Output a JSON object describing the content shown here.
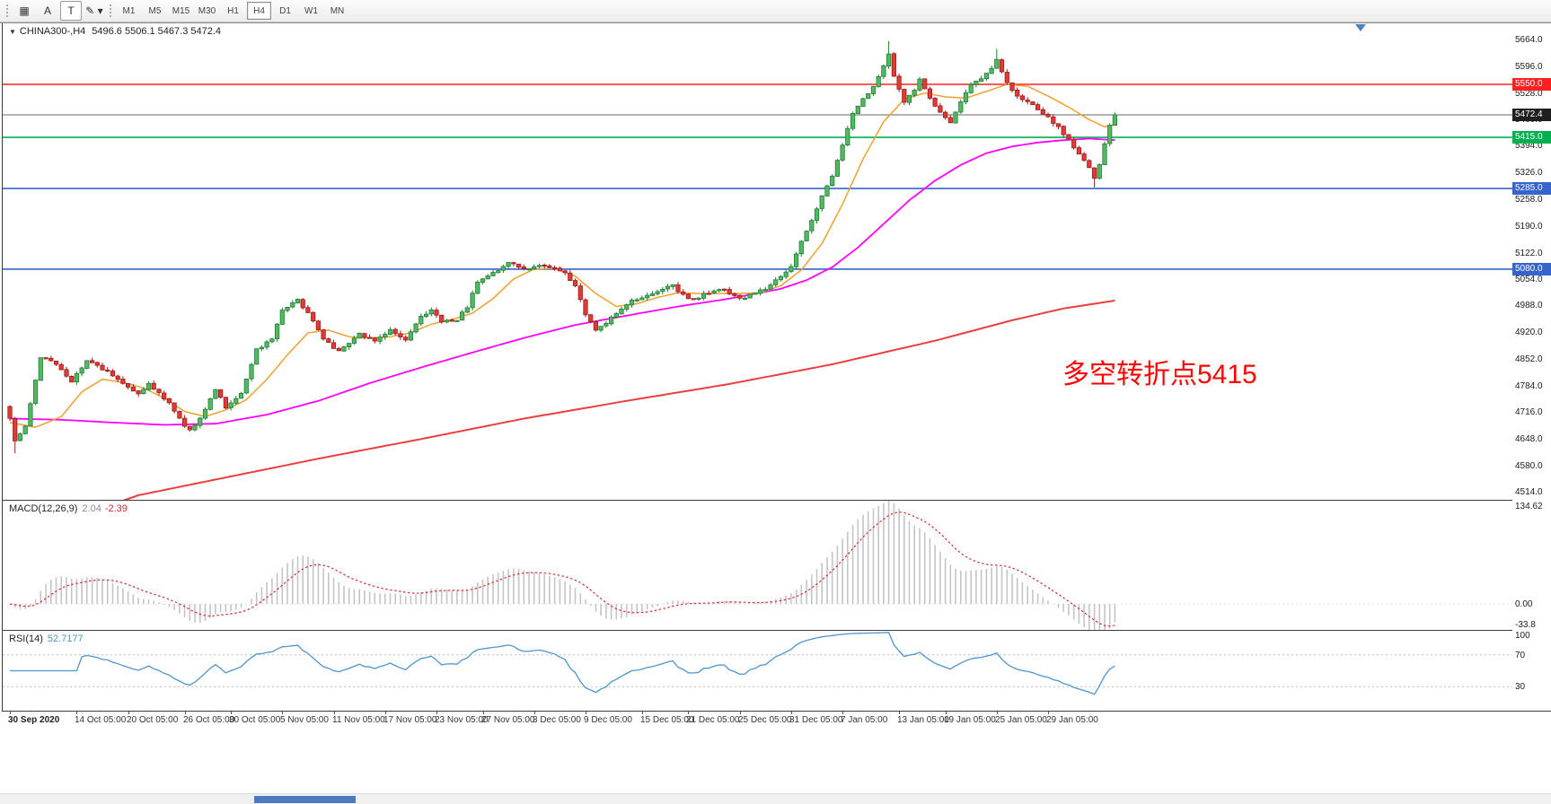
{
  "toolbar": {
    "tools": [
      {
        "name": "chart-grid",
        "glyph": "▦"
      },
      {
        "name": "annotate-a",
        "glyph": "A"
      },
      {
        "name": "text-tool-t",
        "glyph": "T",
        "boxed": true
      },
      {
        "name": "draw-style",
        "glyph": "✎",
        "has_dropdown": true
      }
    ],
    "timeframes": [
      {
        "label": "M1"
      },
      {
        "label": "M5"
      },
      {
        "label": "M15"
      },
      {
        "label": "M30"
      },
      {
        "label": "H1"
      },
      {
        "label": "H4",
        "selected": true
      },
      {
        "label": "D1"
      },
      {
        "label": "W1"
      },
      {
        "label": "MN"
      }
    ]
  },
  "chart": {
    "title": {
      "marker": "▼",
      "symbol": "CHINA300-,H4",
      "ohlc": "5496.6 5506.1 5467.3 5472.4"
    },
    "annotation": {
      "text": "多空转折点5415",
      "color": "#ff0000"
    },
    "levels": [
      {
        "label": "5550.0",
        "v": 5550.0,
        "color": "#ff2020",
        "tag_bg": "#ff2020",
        "type": "resistance"
      },
      {
        "label": "5472.4",
        "v": 5472.4,
        "color": "#666666",
        "tag_bg": "#1f1f1f",
        "current": true,
        "type": "current-price"
      },
      {
        "label": "5415.0",
        "v": 5415.0,
        "color": "#00b050",
        "tag_bg": "#00b050",
        "type": "pivot"
      },
      {
        "label": "5285.0",
        "v": 5285.0,
        "color": "#3464cc",
        "tag_bg": "#3464cc",
        "type": "support"
      },
      {
        "label": "5080.0",
        "v": 5080.0,
        "color": "#3464cc",
        "tag_bg": "#3464cc",
        "type": "support"
      }
    ],
    "price_axis": [
      {
        "label": "5664.0",
        "v": 5664
      },
      {
        "label": "5596.0",
        "v": 5596
      },
      {
        "label": "5528.0",
        "v": 5528
      },
      {
        "label": "5460.0",
        "v": 5460
      },
      {
        "label": "5394.0",
        "v": 5394
      },
      {
        "label": "5326.0",
        "v": 5326
      },
      {
        "label": "5258.0",
        "v": 5258
      },
      {
        "label": "5190.0",
        "v": 5190
      },
      {
        "label": "5122.0",
        "v": 5122
      },
      {
        "label": "5054.0",
        "v": 5054
      },
      {
        "label": "4988.0",
        "v": 4988
      },
      {
        "label": "4920.0",
        "v": 4920
      },
      {
        "label": "4852.0",
        "v": 4852
      },
      {
        "label": "4784.0",
        "v": 4784
      },
      {
        "label": "4716.0",
        "v": 4716
      },
      {
        "label": "4648.0",
        "v": 4648
      },
      {
        "label": "4580.0",
        "v": 4580
      },
      {
        "label": "4514.0",
        "v": 4514
      }
    ],
    "time_axis": [
      {
        "label": "30 Sep 2020",
        "i": 0
      },
      {
        "label": "14 Oct 05:00",
        "i": 13
      },
      {
        "label": "20 Oct 05:00",
        "i": 23
      },
      {
        "label": "26 Oct 05:00",
        "i": 34
      },
      {
        "label": "30 Oct 05:00",
        "i": 43
      },
      {
        "label": "5 Nov 05:00",
        "i": 53
      },
      {
        "label": "11 Nov 05:00",
        "i": 63
      },
      {
        "label": "17 Nov 05:00",
        "i": 73
      },
      {
        "label": "23 Nov 05:00",
        "i": 83
      },
      {
        "label": "27 Nov 05:00",
        "i": 92
      },
      {
        "label": "3 Dec 05:00",
        "i": 102
      },
      {
        "label": "9 Dec 05:00",
        "i": 112
      },
      {
        "label": "15 Dec 05:00",
        "i": 123
      },
      {
        "label": "21 Dec 05:00",
        "i": 132
      },
      {
        "label": "25 Dec 05:00",
        "i": 142
      },
      {
        "label": "31 Dec 05:00",
        "i": 152
      },
      {
        "label": "7 Jan 05:00",
        "i": 162
      },
      {
        "label": "13 Jan 05:00",
        "i": 173
      },
      {
        "label": "19 Jan 05:00",
        "i": 182
      },
      {
        "label": "25 Jan 05:00",
        "i": 192
      },
      {
        "label": "29 Jan 05:00",
        "i": 202
      }
    ]
  },
  "indicators": {
    "macd": {
      "name": "MACD(12,26,9)",
      "value_main": "2.04",
      "value_signal": "-2.39",
      "axis": [
        {
          "label": "134.62",
          "v": 134.62
        },
        {
          "label": "0.00",
          "v": 0
        },
        {
          "label": "-33.8",
          "v": -33.8
        }
      ]
    },
    "rsi": {
      "name": "RSI(14)",
      "value": "52.7177",
      "axis": [
        {
          "label": "100",
          "v": 100
        },
        {
          "label": "70",
          "v": 70
        },
        {
          "label": "30",
          "v": 30
        }
      ],
      "guides": [
        70,
        30
      ]
    }
  },
  "chart_data": {
    "type": "candlestick",
    "symbol": "CHINA300-",
    "timeframe": "H4",
    "title": "CHINA300- H4 with MA fast/mid/slow, horizontal levels 5550/5415/5285/5080, MACD(12,26,9), RSI(14)",
    "n_candles": 216,
    "price_range_visible": [
      4493,
      5705
    ],
    "ohlc_last": {
      "open": 5496.6,
      "high": 5506.1,
      "low": 5467.3,
      "close": 5472.4
    },
    "close_anchors": [
      [
        0,
        4700
      ],
      [
        1,
        4642
      ],
      [
        3,
        4678
      ],
      [
        6,
        4858
      ],
      [
        9,
        4838
      ],
      [
        12,
        4795
      ],
      [
        15,
        4850
      ],
      [
        19,
        4818
      ],
      [
        22,
        4788
      ],
      [
        25,
        4763
      ],
      [
        27,
        4790
      ],
      [
        31,
        4738
      ],
      [
        33,
        4700
      ],
      [
        35,
        4668
      ],
      [
        37,
        4700
      ],
      [
        40,
        4775
      ],
      [
        42,
        4730
      ],
      [
        45,
        4762
      ],
      [
        48,
        4875
      ],
      [
        51,
        4900
      ],
      [
        53,
        4975
      ],
      [
        56,
        5002
      ],
      [
        58,
        4968
      ],
      [
        61,
        4905
      ],
      [
        64,
        4870
      ],
      [
        66,
        4890
      ],
      [
        68,
        4915
      ],
      [
        71,
        4898
      ],
      [
        74,
        4925
      ],
      [
        77,
        4898
      ],
      [
        80,
        4958
      ],
      [
        82,
        4978
      ],
      [
        84,
        4945
      ],
      [
        87,
        4952
      ],
      [
        89,
        4985
      ],
      [
        91,
        5048
      ],
      [
        94,
        5070
      ],
      [
        97,
        5098
      ],
      [
        99,
        5085
      ],
      [
        101,
        5078
      ],
      [
        103,
        5092
      ],
      [
        106,
        5085
      ],
      [
        108,
        5070
      ],
      [
        110,
        5038
      ],
      [
        112,
        4965
      ],
      [
        114,
        4928
      ],
      [
        116,
        4945
      ],
      [
        119,
        4978
      ],
      [
        121,
        4998
      ],
      [
        124,
        5012
      ],
      [
        127,
        5028
      ],
      [
        129,
        5038
      ],
      [
        132,
        5002
      ],
      [
        134,
        5008
      ],
      [
        136,
        5022
      ],
      [
        139,
        5028
      ],
      [
        141,
        5012
      ],
      [
        143,
        5005
      ],
      [
        145,
        5022
      ],
      [
        147,
        5032
      ],
      [
        150,
        5062
      ],
      [
        152,
        5088
      ],
      [
        154,
        5148
      ],
      [
        156,
        5205
      ],
      [
        158,
        5268
      ],
      [
        160,
        5318
      ],
      [
        162,
        5395
      ],
      [
        164,
        5475
      ],
      [
        166,
        5512
      ],
      [
        168,
        5545
      ],
      [
        170,
        5598
      ],
      [
        171,
        5630
      ],
      [
        172,
        5568
      ],
      [
        174,
        5505
      ],
      [
        176,
        5538
      ],
      [
        177,
        5560
      ],
      [
        179,
        5512
      ],
      [
        181,
        5478
      ],
      [
        183,
        5452
      ],
      [
        185,
        5508
      ],
      [
        187,
        5550
      ],
      [
        189,
        5565
      ],
      [
        191,
        5588
      ],
      [
        192,
        5610
      ],
      [
        194,
        5555
      ],
      [
        196,
        5518
      ],
      [
        198,
        5508
      ],
      [
        200,
        5482
      ],
      [
        202,
        5465
      ],
      [
        204,
        5442
      ],
      [
        206,
        5408
      ],
      [
        208,
        5372
      ],
      [
        210,
        5336
      ],
      [
        211,
        5308
      ],
      [
        212,
        5345
      ],
      [
        213,
        5400
      ],
      [
        214,
        5445
      ],
      [
        215,
        5470
      ]
    ],
    "wick_overrides": [
      [
        1,
        "low",
        4612
      ],
      [
        171,
        "high",
        5660
      ],
      [
        192,
        "high",
        5640
      ],
      [
        211,
        "low",
        5288
      ]
    ],
    "ma_fast_anchors": [
      [
        0,
        4690
      ],
      [
        5,
        4678
      ],
      [
        10,
        4705
      ],
      [
        14,
        4768
      ],
      [
        18,
        4800
      ],
      [
        22,
        4792
      ],
      [
        26,
        4778
      ],
      [
        30,
        4752
      ],
      [
        34,
        4718
      ],
      [
        38,
        4705
      ],
      [
        42,
        4722
      ],
      [
        46,
        4748
      ],
      [
        50,
        4800
      ],
      [
        54,
        4862
      ],
      [
        58,
        4918
      ],
      [
        62,
        4925
      ],
      [
        66,
        4908
      ],
      [
        70,
        4905
      ],
      [
        74,
        4908
      ],
      [
        78,
        4918
      ],
      [
        82,
        4940
      ],
      [
        86,
        4952
      ],
      [
        90,
        4968
      ],
      [
        94,
        5005
      ],
      [
        98,
        5055
      ],
      [
        102,
        5080
      ],
      [
        106,
        5082
      ],
      [
        110,
        5062
      ],
      [
        114,
        5018
      ],
      [
        118,
        4985
      ],
      [
        122,
        4992
      ],
      [
        126,
        5008
      ],
      [
        130,
        5020
      ],
      [
        134,
        5018
      ],
      [
        138,
        5018
      ],
      [
        142,
        5018
      ],
      [
        146,
        5020
      ],
      [
        150,
        5038
      ],
      [
        154,
        5078
      ],
      [
        158,
        5145
      ],
      [
        162,
        5245
      ],
      [
        166,
        5360
      ],
      [
        170,
        5455
      ],
      [
        174,
        5512
      ],
      [
        178,
        5528
      ],
      [
        182,
        5518
      ],
      [
        186,
        5515
      ],
      [
        190,
        5532
      ],
      [
        194,
        5550
      ],
      [
        198,
        5545
      ],
      [
        202,
        5520
      ],
      [
        206,
        5492
      ],
      [
        210,
        5460
      ],
      [
        213,
        5442
      ],
      [
        215,
        5448
      ]
    ],
    "ma_mid_anchors": [
      [
        0,
        4700
      ],
      [
        10,
        4697
      ],
      [
        20,
        4690
      ],
      [
        30,
        4684
      ],
      [
        40,
        4687
      ],
      [
        50,
        4710
      ],
      [
        60,
        4745
      ],
      [
        70,
        4790
      ],
      [
        80,
        4830
      ],
      [
        90,
        4868
      ],
      [
        100,
        4905
      ],
      [
        110,
        4938
      ],
      [
        120,
        4962
      ],
      [
        130,
        4985
      ],
      [
        140,
        5005
      ],
      [
        150,
        5030
      ],
      [
        155,
        5052
      ],
      [
        160,
        5085
      ],
      [
        165,
        5135
      ],
      [
        170,
        5195
      ],
      [
        175,
        5255
      ],
      [
        180,
        5305
      ],
      [
        185,
        5345
      ],
      [
        190,
        5375
      ],
      [
        195,
        5392
      ],
      [
        200,
        5402
      ],
      [
        205,
        5408
      ],
      [
        210,
        5412
      ],
      [
        215,
        5408
      ]
    ],
    "ma_slow_anchors": [
      [
        0,
        4395
      ],
      [
        10,
        4448
      ],
      [
        20,
        4482
      ],
      [
        25,
        4505
      ],
      [
        40,
        4545
      ],
      [
        60,
        4598
      ],
      [
        80,
        4648
      ],
      [
        100,
        4700
      ],
      [
        120,
        4745
      ],
      [
        140,
        4788
      ],
      [
        160,
        4838
      ],
      [
        180,
        4898
      ],
      [
        195,
        4950
      ],
      [
        205,
        4980
      ],
      [
        215,
        5000
      ]
    ],
    "macd_scale_max": 134.62,
    "colors": {
      "bull_fill": "#53b763",
      "bull_stroke": "#1e7d33",
      "bear_fill": "#e23b35",
      "bear_stroke": "#991b1b",
      "ma_fast": "#f0a030",
      "ma_mid": "#ff00ff",
      "ma_slow": "#e84040",
      "macd_hist": "#c4c4c4",
      "macd_signal": "#d23030",
      "rsi": "#4f94cd",
      "shift_marker": "#4f81bd"
    }
  }
}
